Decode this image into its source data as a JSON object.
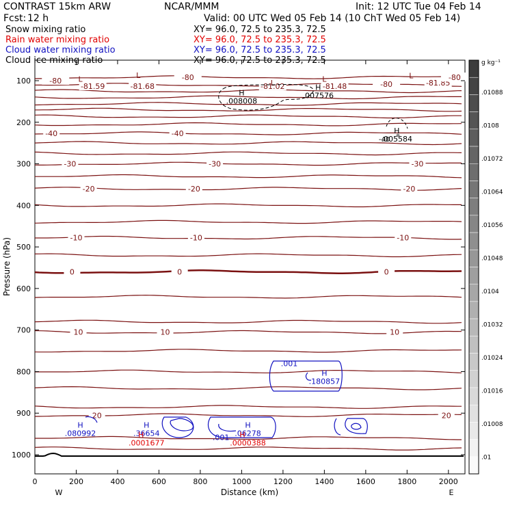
{
  "header": {
    "model": "CONTRAST 15km ARW",
    "org": "NCAR/MMM",
    "init": "Init: 12 UTC Tue 04 Feb 14",
    "fcst_label": "Fcst:",
    "fcst_value": "12 h",
    "valid": "Valid: 00 UTC Wed 05 Feb 14 (10 ChT Wed 05 Feb 14)"
  },
  "legend": [
    {
      "name": "Snow mixing ratio",
      "color": "#000000",
      "xy": "XY=  96.0, 72.5 to 235.3, 72.5"
    },
    {
      "name": "Rain water mixing ratio",
      "color": "#e00000",
      "xy": "XY=  96.0, 72.5 to 235.3, 72.5"
    },
    {
      "name": "Cloud water mixing ratio",
      "color": "#1010c0",
      "xy": "XY=  96.0, 72.5 to 235.3, 72.5"
    },
    {
      "name": "Cloud ice mixing ratio",
      "color": "#000000",
      "xy": "XY=  96.0, 72.5 to 235.3, 72.5"
    }
  ],
  "chart_data": {
    "type": "line",
    "xlabel": "Distance (km)",
    "ylabel": "Pressure (hPa)",
    "xlim": [
      0,
      2080
    ],
    "ylim": [
      1050,
      55
    ],
    "x_ticks": [
      0,
      200,
      400,
      600,
      800,
      1000,
      1200,
      1400,
      1600,
      1800,
      2000
    ],
    "y_ticks": [
      100,
      200,
      300,
      400,
      500,
      600,
      700,
      800,
      900,
      1000
    ],
    "x_ends": {
      "left": "W",
      "right": "E"
    },
    "temperature_contours": [
      {
        "p": 92,
        "temps": []
      },
      {
        "p": 110,
        "temps": []
      },
      {
        "p": 125,
        "temps": []
      },
      {
        "p": 140,
        "temps": []
      },
      {
        "p": 156,
        "temps": []
      },
      {
        "p": 170,
        "temps": []
      },
      {
        "p": 186,
        "temps": []
      },
      {
        "p": 205,
        "temps": []
      },
      {
        "p": 227,
        "temps": [
          "-40"
        ],
        "label_x": [
          80,
          690
        ]
      },
      {
        "p": 250,
        "temps": []
      },
      {
        "p": 275,
        "temps": []
      },
      {
        "p": 300,
        "temps": [
          "-30"
        ],
        "label_x": [
          170,
          870,
          1850
        ]
      },
      {
        "p": 330,
        "temps": []
      },
      {
        "p": 360,
        "temps": [
          "-20"
        ],
        "label_x": [
          260,
          770,
          1810
        ]
      },
      {
        "p": 400,
        "temps": []
      },
      {
        "p": 440,
        "temps": []
      },
      {
        "p": 478,
        "temps": [
          "-10"
        ],
        "label_x": [
          200,
          780,
          1780
        ]
      },
      {
        "p": 520,
        "temps": []
      },
      {
        "p": 560,
        "temps": [
          "0"
        ],
        "label_x": [
          180,
          700,
          1700
        ],
        "bold": true
      },
      {
        "p": 620,
        "temps": []
      },
      {
        "p": 680,
        "temps": []
      },
      {
        "p": 705,
        "temps": [
          "10"
        ],
        "label_x": [
          210,
          630,
          1740
        ]
      },
      {
        "p": 750,
        "temps": []
      },
      {
        "p": 800,
        "temps": []
      },
      {
        "p": 840,
        "temps": []
      },
      {
        "p": 885,
        "temps": []
      },
      {
        "p": 905,
        "temps": [
          "20"
        ],
        "label_x": [
          300,
          1990
        ]
      },
      {
        "p": 960,
        "temps": []
      },
      {
        "p": 985,
        "temps": []
      }
    ],
    "tropopause_labels": [
      {
        "x": 100,
        "p": 100,
        "text": "-80"
      },
      {
        "x": 280,
        "p": 113,
        "text": "-81.59"
      },
      {
        "x": 520,
        "p": 113,
        "text": "-81.68"
      },
      {
        "x": 740,
        "p": 92,
        "text": "-80"
      },
      {
        "x": 1150,
        "p": 113,
        "text": "-81.02"
      },
      {
        "x": 1450,
        "p": 113,
        "text": "-81.48"
      },
      {
        "x": 1700,
        "p": 108,
        "text": "-80"
      },
      {
        "x": 1950,
        "p": 105,
        "text": "-81.85"
      },
      {
        "x": 2030,
        "p": 92,
        "text": "-80"
      }
    ],
    "lows": [
      {
        "x": 220,
        "p": 96,
        "text": "L"
      },
      {
        "x": 500,
        "p": 87,
        "text": "L"
      },
      {
        "x": 1150,
        "p": 105,
        "text": "L"
      },
      {
        "x": 1400,
        "p": 96,
        "text": "L"
      },
      {
        "x": 1820,
        "p": 88,
        "text": "L"
      }
    ],
    "ice_maxima": [
      {
        "x": 1000,
        "p": 135,
        "h": "H",
        "value": ".008008"
      },
      {
        "x": 1370,
        "p": 122,
        "h": "H",
        "value": ".007576"
      },
      {
        "x": 1750,
        "p": 227,
        "h": "H",
        "value": ".005584"
      }
    ],
    "ice_minus_labels": [
      {
        "x": 1690,
        "p": 240,
        "text": "-40"
      }
    ],
    "cloud_water_maxima": [
      {
        "x": 220,
        "p": 935,
        "h": "H",
        "value": ".080992"
      },
      {
        "x": 540,
        "p": 935,
        "h": "H",
        "value": ".36654"
      },
      {
        "x": 1030,
        "p": 935,
        "h": "H",
        "value": ".06278"
      },
      {
        "x": 1400,
        "p": 810,
        "h": "H",
        "value": ".180857"
      }
    ],
    "cloud_water_labels": [
      {
        "x": 1230,
        "p": 780,
        "text": ".001"
      },
      {
        "x": 900,
        "p": 958,
        "text": ".001"
      }
    ],
    "rain_maxima": [
      {
        "x": 540,
        "p": 958,
        "h": "H",
        "value": ".0001677"
      },
      {
        "x": 1030,
        "p": 958,
        "h": "H",
        "value": ".0000388"
      }
    ],
    "colorbar": {
      "unit": "g kg⁻¹",
      "labels": [
        ".01088",
        ".0108",
        ".01072",
        ".01064",
        ".01056",
        ".01048",
        ".0104",
        ".01032",
        ".01024",
        ".01016",
        ".01008",
        ".01"
      ]
    }
  }
}
